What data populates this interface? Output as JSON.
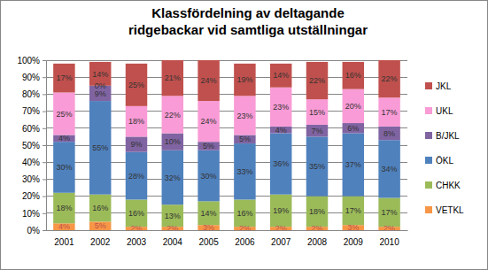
{
  "chart_data": {
    "type": "bar",
    "stacked": true,
    "data_labels": true,
    "grid": true,
    "legend": "right",
    "title": "Klassfördelning av deltagande\nridgebackar vid samtliga utställningar",
    "categories": [
      "2001",
      "2002",
      "2003",
      "2004",
      "2005",
      "2006",
      "2007",
      "2008",
      "2009",
      "2010"
    ],
    "ylim": [
      0,
      100
    ],
    "yticks": [
      {
        "value": 0,
        "label": "0%"
      },
      {
        "value": 10,
        "label": "10%"
      },
      {
        "value": 20,
        "label": "20%"
      },
      {
        "value": 30,
        "label": "30%"
      },
      {
        "value": 40,
        "label": "40%"
      },
      {
        "value": 50,
        "label": "50%"
      },
      {
        "value": 60,
        "label": "60%"
      },
      {
        "value": 70,
        "label": "70%"
      },
      {
        "value": 80,
        "label": "80%"
      },
      {
        "value": 90,
        "label": "90%"
      },
      {
        "value": 100,
        "label": "100%"
      }
    ],
    "series": [
      {
        "name": "VETKL",
        "color": "#f79646",
        "values": [
          4,
          5,
          2,
          2,
          3,
          2,
          2,
          2,
          3,
          2
        ],
        "value_labels": [
          "4%",
          "5%",
          "2%",
          "2%",
          "3%",
          "2%",
          "2%",
          "2%",
          "3%",
          "2%"
        ]
      },
      {
        "name": "CHKK",
        "color": "#9bbb59",
        "values": [
          18,
          16,
          16,
          13,
          14,
          16,
          19,
          18,
          17,
          17
        ],
        "value_labels": [
          "18%",
          "16%",
          "16%",
          "13%",
          "14%",
          "16%",
          "19%",
          "18%",
          "17%",
          "17%"
        ]
      },
      {
        "name": "ÖKL",
        "color": "#4f81bd",
        "values": [
          30,
          55,
          28,
          32,
          30,
          33,
          36,
          35,
          37,
          34
        ],
        "value_labels": [
          "30%",
          "55%",
          "28%",
          "32%",
          "30%",
          "33%",
          "36%",
          "35%",
          "37%",
          "34%"
        ]
      },
      {
        "name": "B/JKL",
        "color": "#8064a2",
        "values": [
          4,
          9,
          9,
          10,
          5,
          5,
          4,
          7,
          6,
          8
        ],
        "value_labels": [
          "4%",
          "9%",
          "9%",
          "10%",
          "5%",
          "5%",
          "4%",
          "7%",
          "6%",
          "8%"
        ]
      },
      {
        "name": "UKL",
        "color": "#f99bd6",
        "values": [
          25,
          0,
          18,
          22,
          24,
          23,
          23,
          15,
          20,
          17
        ],
        "value_labels": [
          "25%",
          "0%",
          "18%",
          "22%",
          "24%",
          "23%",
          "23%",
          "15%",
          "20%",
          "17%"
        ]
      },
      {
        "name": "JKL",
        "color": "#c0504d",
        "values": [
          17,
          14,
          25,
          21,
          24,
          19,
          14,
          22,
          16,
          22
        ],
        "value_labels": [
          "17%",
          "14%",
          "25%",
          "21%",
          "24%",
          "19%",
          "14%",
          "22%",
          "16%",
          "22%"
        ]
      }
    ]
  }
}
